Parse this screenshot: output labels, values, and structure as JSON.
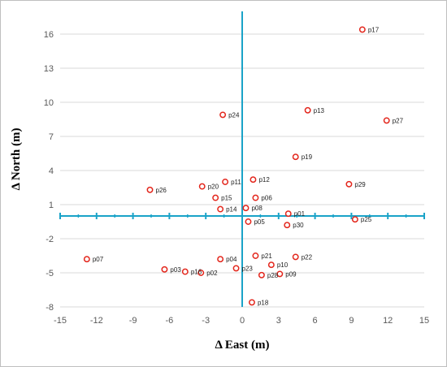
{
  "colors": {
    "axis": "#1aa3c8",
    "grid": "#d9d9d9",
    "marker": "#e3261c",
    "border": "#bfbfbf"
  },
  "chart_data": {
    "type": "scatter",
    "xlabel": "Δ East (m)",
    "ylabel": "Δ North (m)",
    "xlim": [
      -15,
      15
    ],
    "ylim": [
      -8,
      18
    ],
    "x_ticks": [
      -15,
      -12,
      -9,
      -6,
      -3,
      0,
      3,
      6,
      9,
      12,
      15
    ],
    "y_ticks": [
      -8,
      -5,
      -2,
      1,
      4,
      7,
      10,
      13,
      16
    ],
    "grid": "horizontal",
    "points": [
      {
        "label": "p01",
        "x": 3.8,
        "y": 0.2
      },
      {
        "label": "p02",
        "x": -3.4,
        "y": -5.0
      },
      {
        "label": "p03",
        "x": -6.4,
        "y": -4.7
      },
      {
        "label": "p04",
        "x": -1.8,
        "y": -3.8
      },
      {
        "label": "p05",
        "x": 0.5,
        "y": -0.5
      },
      {
        "label": "p06",
        "x": 1.1,
        "y": 1.6
      },
      {
        "label": "p07",
        "x": -12.8,
        "y": -3.8
      },
      {
        "label": "p08",
        "x": 0.3,
        "y": 0.7
      },
      {
        "label": "p09",
        "x": 3.1,
        "y": -5.1
      },
      {
        "label": "p10",
        "x": 2.4,
        "y": -4.3
      },
      {
        "label": "p11",
        "x": -1.4,
        "y": 3.0
      },
      {
        "label": "p12",
        "x": 0.9,
        "y": 3.2
      },
      {
        "label": "p13",
        "x": 5.4,
        "y": 9.3
      },
      {
        "label": "p14",
        "x": -1.8,
        "y": 0.6
      },
      {
        "label": "p15",
        "x": -2.2,
        "y": 1.6
      },
      {
        "label": "p16",
        "x": -4.7,
        "y": -4.9
      },
      {
        "label": "p17",
        "x": 9.9,
        "y": 16.4
      },
      {
        "label": "p18",
        "x": 0.8,
        "y": -7.6
      },
      {
        "label": "p19",
        "x": 4.4,
        "y": 5.2
      },
      {
        "label": "p20",
        "x": -3.3,
        "y": 2.6
      },
      {
        "label": "p21",
        "x": 1.1,
        "y": -3.5
      },
      {
        "label": "p22",
        "x": 4.4,
        "y": -3.6
      },
      {
        "label": "p23",
        "x": -0.5,
        "y": -4.6
      },
      {
        "label": "p24",
        "x": -1.6,
        "y": 8.9
      },
      {
        "label": "p25",
        "x": 9.3,
        "y": -0.3
      },
      {
        "label": "p26",
        "x": -7.6,
        "y": 2.3
      },
      {
        "label": "p27",
        "x": 11.9,
        "y": 8.4
      },
      {
        "label": "p28",
        "x": 1.6,
        "y": -5.2
      },
      {
        "label": "p29",
        "x": 8.8,
        "y": 2.8
      },
      {
        "label": "p30",
        "x": 3.7,
        "y": -0.8
      }
    ]
  }
}
